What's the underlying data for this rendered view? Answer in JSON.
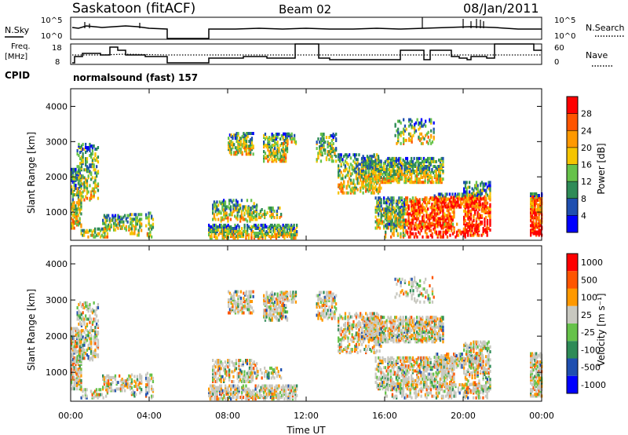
{
  "header": {
    "station": "Saskatoon (fitACF)",
    "beam": "Beam 02",
    "date": "08/Jan/2011"
  },
  "top_panels": {
    "nsky_label": "N.Sky",
    "nsky_ticks": [
      "10^5",
      "10^0"
    ],
    "nsearch_label": "N.Search",
    "nsearch_ticks": [
      "10^5",
      "10^0"
    ],
    "freq_label": "Freq.",
    "freq_unit": "[MHz]",
    "freq_ticks": [
      "18",
      "8"
    ],
    "nave_label": "Nave",
    "nave_ticks": [
      "60",
      "0"
    ],
    "cpid_label": "CPID",
    "cpid_value": "normalsound (fast) 157"
  },
  "chart_data": [
    {
      "type": "heatmap",
      "name": "power-panel",
      "ylabel": "Slant Range [km]",
      "yticks": [
        "1000",
        "2000",
        "3000",
        "4000"
      ],
      "ylim": [
        200,
        4500
      ],
      "colorbar_label": "Power [dB]",
      "colorbar_ticks": [
        "4",
        "8",
        "12",
        "16",
        "20",
        "24",
        "28"
      ],
      "colors": [
        "#0000ff",
        "#1f4fb0",
        "#2e8b57",
        "#66c24a",
        "#f5c400",
        "#ff9900",
        "#ff5500",
        "#ff0000"
      ]
    },
    {
      "type": "heatmap",
      "name": "velocity-panel",
      "ylabel": "Slant Range [km]",
      "yticks": [
        "1000",
        "2000",
        "3000",
        "4000"
      ],
      "ylim": [
        200,
        4500
      ],
      "colorbar_label": "Velocity [m s⁻¹]",
      "colorbar_ticks": [
        "1000",
        "500",
        "100",
        "25",
        "-25",
        "-100",
        "-500",
        "-1000"
      ],
      "colors": [
        "#0000ff",
        "#1f4fb0",
        "#2e8b57",
        "#66c24a",
        "#c8c8c0",
        "#ff9900",
        "#ff5500",
        "#ff0000"
      ]
    }
  ],
  "xaxis": {
    "label": "Time UT",
    "ticks": [
      "00:00",
      "04:00",
      "08:00",
      "12:00",
      "16:00",
      "20:00",
      "00:00"
    ]
  }
}
